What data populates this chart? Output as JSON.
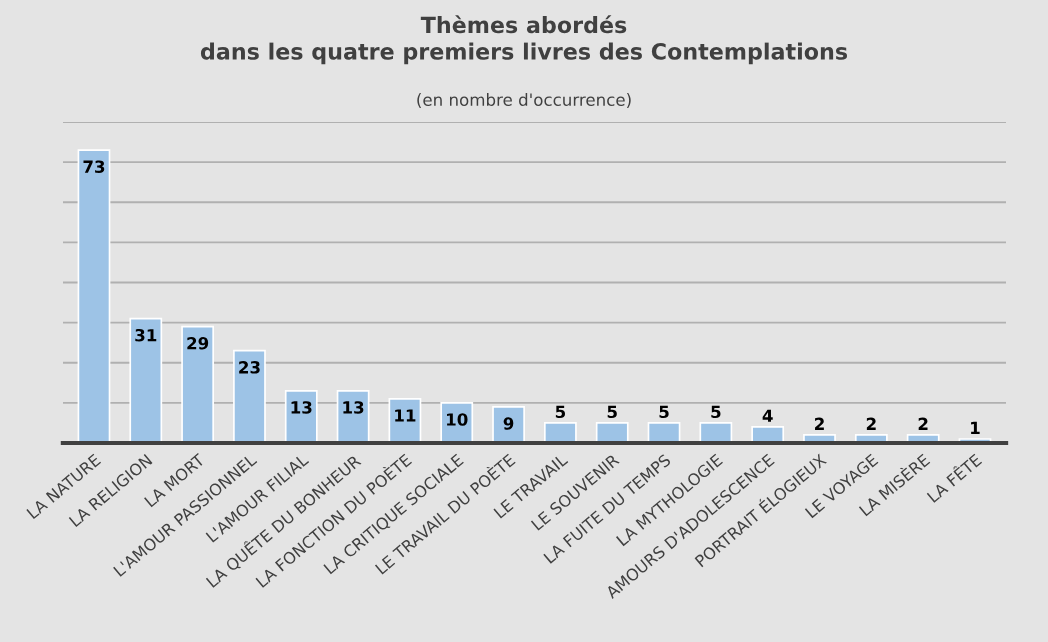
{
  "chart_data": {
    "type": "bar",
    "title": "Thèmes abordés\ndans les quatre premiers livres des Contemplations",
    "subtitle": "(en nombre d'occurrence)",
    "categories": [
      "LA NATURE",
      "LA RELIGION",
      "LA MORT",
      "L'AMOUR PASSIONNEL",
      "L'AMOUR FILIAL",
      "LA QUÊTE DU BONHEUR",
      "LA FONCTION DU POÈTE",
      "LA CRITIQUE SOCIALE",
      "LE TRAVAIL DU POÈTE",
      "LE TRAVAIL",
      "LE SOUVENIR",
      "LA FUITE DU TEMPS",
      "LA MYTHOLOGIE",
      "AMOURS D'ADOLESCENCE",
      "PORTRAIT ÉLOGIEUX",
      "LE VOYAGE",
      "LA MISÈRE",
      "LA FÊTE"
    ],
    "values": [
      73,
      31,
      29,
      23,
      13,
      13,
      11,
      10,
      9,
      5,
      5,
      5,
      5,
      4,
      2,
      2,
      2,
      1
    ],
    "color": "#9dc3e6",
    "data_labels": true,
    "ylim": [
      0,
      80
    ],
    "yticks": [
      {
        "value": 0,
        "label": null
      },
      {
        "value": 10,
        "label": null
      },
      {
        "value": 20,
        "label": null
      },
      {
        "value": 30,
        "label": null
      },
      {
        "value": 40,
        "label": null
      },
      {
        "value": 50,
        "label": null
      },
      {
        "value": 60,
        "label": null
      },
      {
        "value": 70,
        "label": null
      },
      {
        "value": 80,
        "label": null
      }
    ],
    "grid": "y",
    "tick_labels": "x"
  }
}
